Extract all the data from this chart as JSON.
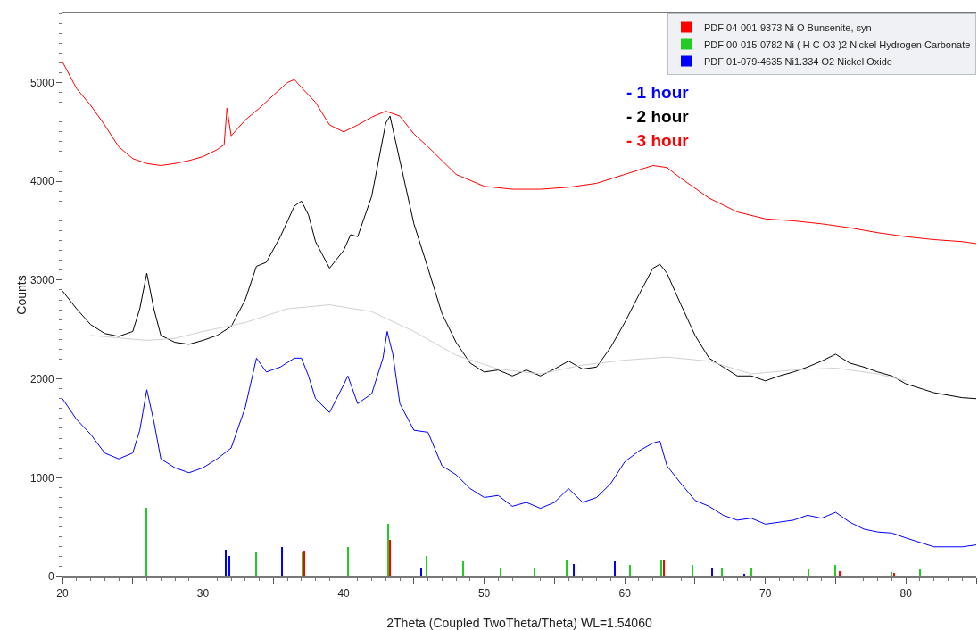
{
  "chart_data": {
    "type": "line",
    "xlabel": "2Theta (Coupled TwoTheta/Theta) WL=1.54060",
    "ylabel": "Counts",
    "xlim": [
      20,
      85
    ],
    "ylim": [
      0,
      5700
    ],
    "xticks": [
      20,
      {
        "value": 25,
        "label": null
      },
      30,
      {
        "value": 35,
        "label": null
      },
      40,
      {
        "value": 45,
        "label": null
      },
      50,
      {
        "value": 55,
        "label": null
      },
      60,
      {
        "value": 65,
        "label": null
      },
      70,
      {
        "value": 75,
        "label": null
      },
      80,
      {
        "value": 85,
        "label": null
      }
    ],
    "yticks": [
      0,
      1000,
      2000,
      3000,
      4000,
      5000
    ],
    "grid": false,
    "legend": "top right",
    "marker": "none",
    "line_style": "solid",
    "series": [
      {
        "name": "- 3 hour",
        "color": "#ff0000",
        "x": [
          20,
          21,
          22,
          23,
          24,
          25,
          26,
          27,
          28,
          29,
          30,
          31,
          31.5,
          31.7,
          32,
          33,
          34,
          35,
          36,
          36.5,
          37,
          38,
          39,
          40,
          41,
          42,
          43,
          44,
          45,
          46,
          47,
          48,
          50,
          52,
          54,
          56,
          58,
          60,
          62,
          63,
          64,
          66,
          68,
          70,
          72,
          74,
          76,
          78,
          80,
          82,
          84,
          85
        ],
        "values": [
          5210,
          4940,
          4770,
          4570,
          4350,
          4230,
          4180,
          4160,
          4180,
          4210,
          4250,
          4320,
          4370,
          4740,
          4460,
          4620,
          4740,
          4870,
          5000,
          5030,
          4950,
          4800,
          4570,
          4500,
          4570,
          4650,
          4710,
          4660,
          4480,
          4350,
          4210,
          4070,
          3950,
          3920,
          3920,
          3940,
          3980,
          4070,
          4160,
          4140,
          4030,
          3830,
          3690,
          3620,
          3600,
          3570,
          3530,
          3480,
          3440,
          3410,
          3390,
          3370
        ]
      },
      {
        "name": "- 2 hour",
        "color": "#000000",
        "x": [
          20,
          21,
          22,
          23,
          24,
          25,
          25.5,
          26,
          26.5,
          27,
          28,
          29,
          30,
          31,
          32,
          33,
          33.8,
          34.5,
          35.5,
          36.5,
          37,
          37.5,
          38,
          39,
          40,
          40.5,
          41,
          42,
          43,
          43.3,
          44,
          45,
          46,
          47,
          48,
          49,
          50,
          51,
          52,
          53,
          54,
          55,
          56,
          57,
          58,
          59,
          60,
          61,
          62,
          62.5,
          63,
          64,
          65,
          66,
          67,
          68,
          69,
          70,
          71,
          72,
          73,
          74,
          75,
          76,
          77,
          78,
          79,
          80,
          82,
          84,
          85
        ],
        "values": [
          2890,
          2710,
          2550,
          2460,
          2430,
          2480,
          2710,
          3070,
          2710,
          2440,
          2370,
          2350,
          2390,
          2440,
          2530,
          2800,
          3140,
          3180,
          3440,
          3750,
          3800,
          3660,
          3390,
          3120,
          3300,
          3460,
          3440,
          3850,
          4590,
          4660,
          4210,
          3570,
          3120,
          2660,
          2370,
          2160,
          2070,
          2090,
          2030,
          2090,
          2030,
          2100,
          2180,
          2100,
          2120,
          2320,
          2570,
          2850,
          3120,
          3160,
          3070,
          2750,
          2440,
          2210,
          2120,
          2030,
          2030,
          1980,
          2030,
          2070,
          2120,
          2180,
          2250,
          2160,
          2120,
          2070,
          2030,
          1950,
          1860,
          1810,
          1800
        ]
      },
      {
        "color": "#d0d0d0",
        "x": [
          22,
          26,
          28,
          30,
          33,
          36,
          39,
          42,
          45,
          48,
          51,
          54,
          57,
          60,
          63,
          66,
          69,
          72,
          75,
          78,
          80
        ],
        "values": [
          2440,
          2390,
          2410,
          2480,
          2570,
          2710,
          2750,
          2680,
          2480,
          2240,
          2100,
          2050,
          2140,
          2190,
          2220,
          2180,
          2050,
          2090,
          2110,
          2050,
          1980
        ]
      },
      {
        "name": "- 1 hour",
        "color": "#0000ff",
        "x": [
          20,
          21,
          22,
          23,
          24,
          25,
          25.5,
          26,
          26.5,
          27,
          28,
          29,
          30,
          31,
          32,
          33,
          33.8,
          34.5,
          35.5,
          36.5,
          37,
          37.5,
          38,
          39,
          40,
          40.3,
          41,
          42,
          42.8,
          43.1,
          43.5,
          44,
          45,
          46,
          47,
          48,
          49,
          50,
          51,
          52,
          53,
          54,
          55,
          56,
          57,
          58,
          59,
          60,
          61,
          62,
          62.5,
          63,
          64,
          65,
          66,
          67,
          68,
          69,
          70,
          71,
          72,
          73,
          74,
          75,
          76,
          77,
          78,
          79,
          80,
          82,
          84,
          85
        ],
        "values": [
          1800,
          1590,
          1440,
          1250,
          1190,
          1250,
          1480,
          1890,
          1570,
          1190,
          1100,
          1050,
          1100,
          1190,
          1300,
          1710,
          2210,
          2070,
          2120,
          2210,
          2210,
          2030,
          1800,
          1660,
          1940,
          2030,
          1750,
          1850,
          2210,
          2480,
          2250,
          1750,
          1480,
          1460,
          1120,
          1030,
          890,
          800,
          820,
          710,
          750,
          690,
          750,
          890,
          750,
          800,
          940,
          1160,
          1270,
          1350,
          1370,
          1120,
          940,
          770,
          710,
          620,
          570,
          590,
          530,
          550,
          570,
          620,
          590,
          650,
          550,
          480,
          450,
          440,
          390,
          300,
          300,
          320
        ]
      },
      {
        "type": "bar",
        "name": "PDF 04-001-9373 Ni O Bunsenite, syn",
        "color": "#ff0000",
        "x": [
          37.2,
          43.3,
          62.8,
          75.3,
          79.2
        ],
        "values": [
          250,
          370,
          160,
          50,
          40
        ]
      },
      {
        "type": "bar",
        "name": "PDF 00-015-0782 Ni ( H C O3 )2 Nickel Hydrogen Carbonate",
        "color": "#22cc22",
        "x": [
          26.0,
          33.8,
          37.1,
          40.3,
          43.2,
          45.9,
          48.5,
          51.2,
          53.6,
          55.9,
          60.4,
          62.6,
          64.8,
          66.9,
          69.0,
          73.1,
          75.0,
          79.0,
          81.0
        ],
        "values": [
          700,
          240,
          240,
          300,
          530,
          210,
          150,
          90,
          90,
          160,
          120,
          160,
          120,
          90,
          90,
          70,
          120,
          45,
          70
        ]
      },
      {
        "type": "bar",
        "name": "PDF 01-079-4635 Ni1.334 O2 Nickel Oxide",
        "color": "#0000ff",
        "x": [
          31.6,
          31.9,
          35.6,
          45.5,
          56.4,
          59.3,
          66.2,
          68.5
        ],
        "values": [
          270,
          210,
          300,
          80,
          130,
          150,
          80,
          30
        ]
      }
    ]
  }
}
